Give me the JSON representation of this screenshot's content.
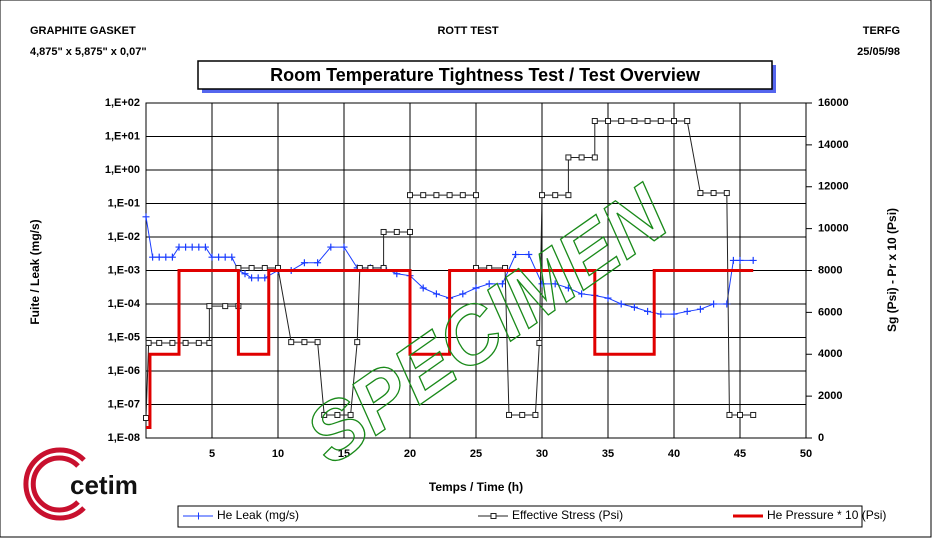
{
  "chart_data": {
    "type": "line",
    "header_left": "GRAPHITE GASKET",
    "header_left_sub": "4,875\" x 5,875\" x 0,07\"",
    "header_center": "ROTT TEST",
    "header_right": "TERFG",
    "header_right_sub": "25/05/98",
    "title": "Room Temperature Tightness Test  / Test Overview",
    "xlabel": "Temps / Time (h)",
    "ylabel": "Fuite / Leak (mg/s)",
    "y2label": "Sg (Psi) - Pr x 10 (Psi)",
    "watermark": "SPECIMEN",
    "logo": "cetim",
    "xlim": [
      0,
      50
    ],
    "xticks": [
      5,
      10,
      15,
      20,
      25,
      30,
      35,
      40,
      45,
      50
    ],
    "ylog": true,
    "ylim": [
      1e-08,
      100
    ],
    "yticks": [
      {
        "value": 100,
        "label": "1,E+02"
      },
      {
        "value": 10,
        "label": "1,E+01"
      },
      {
        "value": 1,
        "label": "1,E+00"
      },
      {
        "value": 0.1,
        "label": "1,E-01"
      },
      {
        "value": 0.01,
        "label": "1,E-02"
      },
      {
        "value": 0.001,
        "label": "1,E-03"
      },
      {
        "value": 0.0001,
        "label": "1,E-04"
      },
      {
        "value": 1e-05,
        "label": "1,E-05"
      },
      {
        "value": 1e-06,
        "label": "1,E-06"
      },
      {
        "value": 1e-07,
        "label": "1,E-07"
      },
      {
        "value": 1e-08,
        "label": "1,E-08"
      }
    ],
    "y2lim": [
      0,
      16000
    ],
    "y2ticks": [
      0,
      2000,
      4000,
      6000,
      8000,
      10000,
      12000,
      14000,
      16000
    ],
    "grid": true,
    "series": [
      {
        "name": "He Leak (mg/s)",
        "color": "#1a3cff",
        "marker": "plus",
        "x": [
          0,
          0.5,
          1,
          1.5,
          2,
          2.5,
          3,
          3.5,
          4,
          4.5,
          5,
          5.5,
          6,
          6.5,
          7,
          7.5,
          8,
          8.5,
          9,
          10,
          11,
          12,
          13,
          14,
          15,
          16,
          17,
          18,
          19,
          20,
          21,
          22,
          23,
          24,
          25,
          26,
          27,
          28,
          29,
          30,
          31,
          32,
          33,
          34,
          35,
          36,
          37,
          38,
          39,
          40,
          41,
          42,
          43,
          44,
          44.5,
          45,
          46
        ],
        "values": [
          0.04,
          0.0025,
          0.0025,
          0.0025,
          0.0025,
          0.005,
          0.005,
          0.005,
          0.005,
          0.005,
          0.0025,
          0.0025,
          0.0025,
          0.0025,
          0.001,
          0.0008,
          0.0006,
          0.0006,
          0.0006,
          0.001,
          0.001,
          0.0017,
          0.0017,
          0.005,
          0.005,
          0.0012,
          0.0012,
          0.0012,
          0.0008,
          0.0007,
          0.0003,
          0.0002,
          0.00015,
          0.0002,
          0.0003,
          0.0004,
          0.0004,
          0.003,
          0.003,
          0.0004,
          0.0004,
          0.0003,
          0.0002,
          0.00018,
          0.00015,
          0.0001,
          8e-05,
          6e-05,
          5e-05,
          5e-05,
          6e-05,
          7e-05,
          0.0001,
          0.0001,
          0.002,
          0.002,
          0.002
        ]
      },
      {
        "name": "Effective Stress (Psi)",
        "color": "#222222",
        "marker": "square",
        "axis": "y2",
        "x": [
          0,
          0.2,
          1,
          2,
          3,
          4,
          4.8,
          4.8,
          6,
          7,
          7,
          8,
          9,
          10,
          11,
          12,
          13,
          13.5,
          14.5,
          15.5,
          16,
          16.2,
          17,
          18,
          18,
          19,
          20,
          20,
          21,
          22,
          23,
          24,
          25,
          25,
          26,
          27.2,
          27.5,
          28.5,
          29.5,
          29.8,
          30,
          31,
          32,
          32,
          33,
          34,
          34,
          35,
          36,
          37,
          38,
          39,
          40,
          41,
          42,
          43,
          44,
          44.2,
          45,
          46
        ],
        "values": [
          955,
          4540,
          4540,
          4540,
          4540,
          4540,
          4540,
          6300,
          6300,
          6300,
          8120,
          8120,
          8120,
          8120,
          4580,
          4580,
          4580,
          1100,
          1100,
          1100,
          4580,
          8120,
          8120,
          8120,
          9840,
          9840,
          9840,
          11600,
          11600,
          11600,
          11600,
          11600,
          11600,
          8120,
          8120,
          8120,
          1100,
          1100,
          1100,
          4540,
          11600,
          11600,
          11600,
          13400,
          13400,
          13400,
          15140,
          15140,
          15140,
          15140,
          15140,
          15140,
          15140,
          15140,
          11700,
          11700,
          11700,
          1100,
          1100,
          1100
        ]
      },
      {
        "name": "He Pressure * 10 (Psi)",
        "color": "#e00000",
        "marker": "none",
        "axis": "y2",
        "x": [
          0,
          0.3,
          0.3,
          2.5,
          2.5,
          7,
          7,
          9.3,
          9.3,
          20,
          20,
          23,
          23,
          34,
          34,
          38.5,
          38.5,
          46
        ],
        "values": [
          500,
          500,
          4000,
          4000,
          8000,
          8000,
          4000,
          4000,
          8000,
          8000,
          4000,
          4000,
          8000,
          8000,
          4000,
          4000,
          8000,
          8000
        ]
      }
    ]
  }
}
